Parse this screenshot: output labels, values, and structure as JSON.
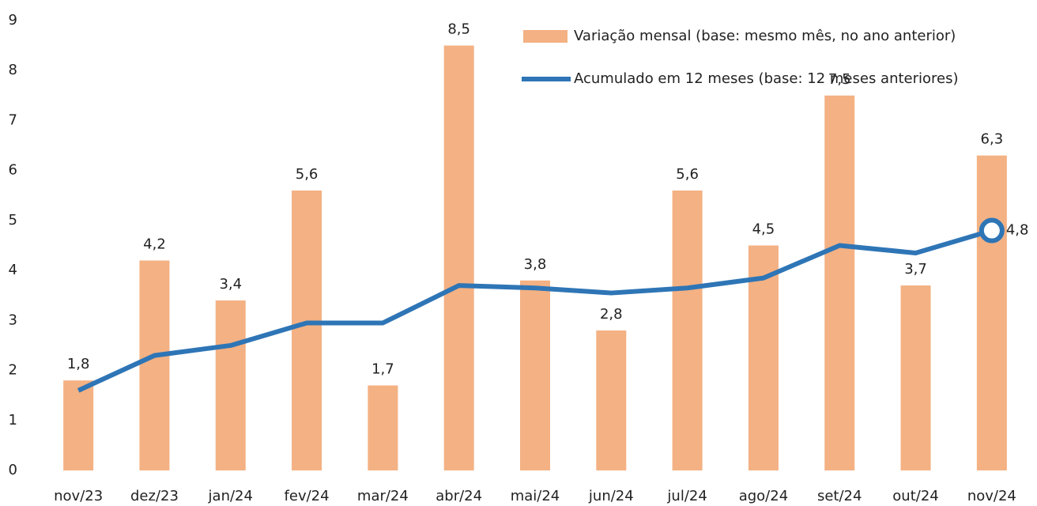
{
  "chart_data": {
    "type": "bar",
    "categories": [
      "nov/23",
      "dez/23",
      "jan/24",
      "fev/24",
      "mar/24",
      "abr/24",
      "mai/24",
      "jun/24",
      "jul/24",
      "ago/24",
      "set/24",
      "out/24",
      "nov/24"
    ],
    "series": [
      {
        "name": "Variação mensal (base: mesmo mês, no ano anterior)",
        "type": "bar",
        "color": "#f4b183",
        "values": [
          1.8,
          4.2,
          3.4,
          5.6,
          1.7,
          8.5,
          3.8,
          2.8,
          5.6,
          4.5,
          7.5,
          3.7,
          6.3
        ],
        "value_labels": [
          "1,8",
          "4,2",
          "3,4",
          "5,6",
          "1,7",
          "8,5",
          "3,8",
          "2,8",
          "5,6",
          "4,5",
          "7,5",
          "3,7",
          "6,3"
        ]
      },
      {
        "name": "Acumulado em 12 meses (base: 12 meses anteriores)",
        "type": "line",
        "color": "#2e75b6",
        "values": [
          1.6,
          2.3,
          2.5,
          2.95,
          2.95,
          3.7,
          3.65,
          3.55,
          3.65,
          3.85,
          4.5,
          4.35,
          4.8
        ],
        "value_labels": [
          null,
          null,
          null,
          null,
          null,
          null,
          null,
          null,
          null,
          null,
          null,
          null,
          "4,8"
        ]
      }
    ],
    "ylim": [
      0,
      9
    ],
    "yticks": [
      0,
      1,
      2,
      3,
      4,
      5,
      6,
      7,
      8,
      9
    ],
    "grid": false,
    "legend": "top-right"
  }
}
